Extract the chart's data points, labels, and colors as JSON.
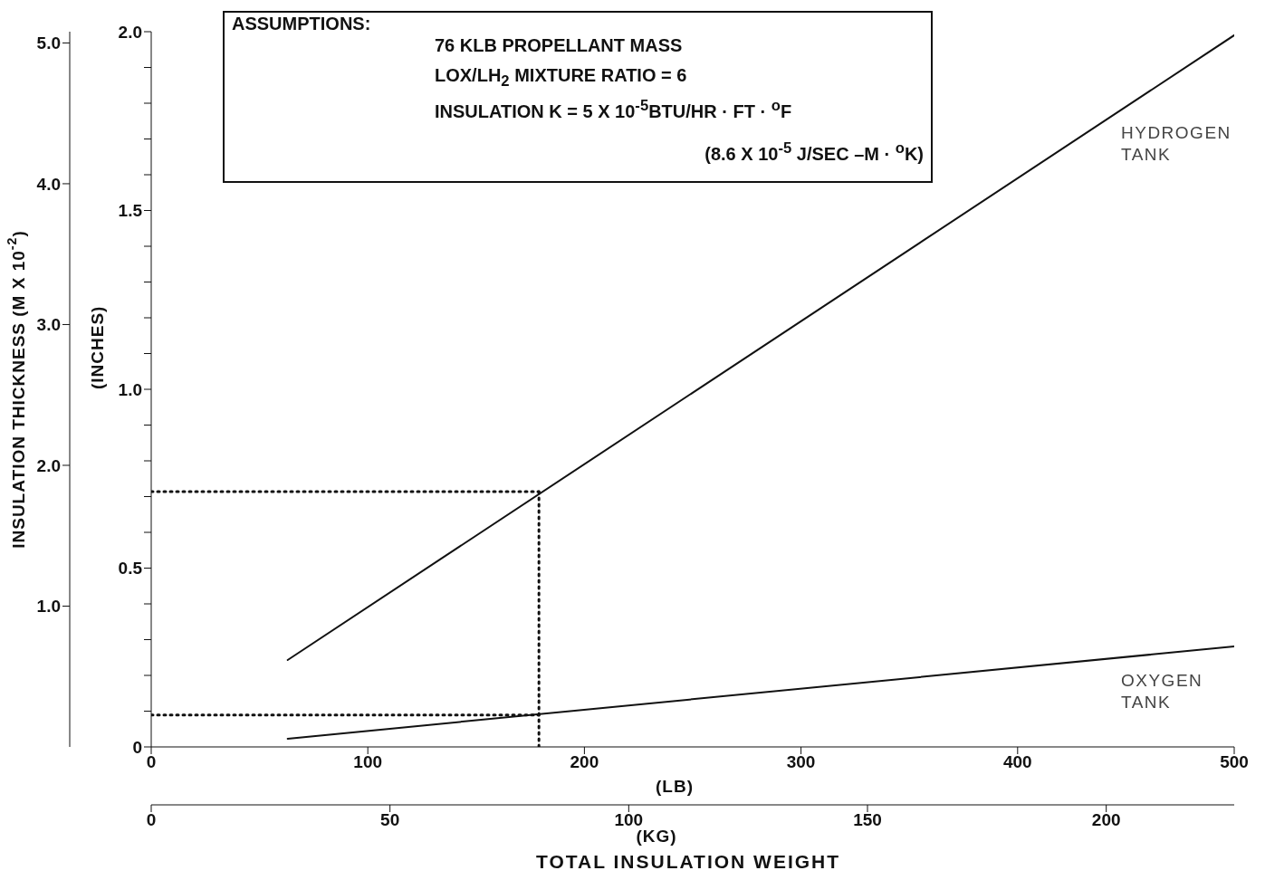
{
  "chart_data": {
    "type": "line",
    "xlabel": "(LB)",
    "x2label": "(KG)",
    "ylabel": "(INCHES)",
    "y2label": "INSULATION THICKNESS (M X 10$^{-2}$)",
    "annotations": [
      "ASSUMPTIONS:",
      "76 KLB PROPELLANT MASS",
      "LOX/LH$_{2}$ MIXTURE RATIO = 6",
      "INSULATION K = 5 X 10$^{-5}$BTU/HR · FT · $^{o}$F",
      "(8.6 X 10$^{-5}$ J/SEC –M · $^{o}$K)",
      "TOTAL INSULATION WEIGHT"
    ],
    "series": [
      {
        "name": "HYDROGEN TANK",
        "color": "#111111",
        "x": [
          63,
          500
        ],
        "values": [
          0.243,
          1.99
        ]
      },
      {
        "name": "OXYGEN TANK",
        "color": "#111111",
        "x": [
          63,
          500
        ],
        "values": [
          0.023,
          0.281
        ]
      },
      {
        "color": "#111111",
        "line_style": "dotted",
        "x": [
          0,
          179
        ],
        "values": [
          0.714,
          0.714
        ]
      },
      {
        "color": "#111111",
        "line_style": "dotted",
        "x": [
          0,
          179
        ],
        "values": [
          0.089,
          0.089
        ]
      },
      {
        "color": "#111111",
        "line_style": "dotted",
        "x": [
          179,
          179
        ],
        "values": [
          0,
          0.714
        ]
      }
    ],
    "xlim": [
      0,
      500
    ],
    "xticks": [
      0,
      100,
      200,
      300,
      400,
      500
    ],
    "x2lim": [
      0,
      226.8
    ],
    "x2ticks": [
      0,
      50,
      100,
      150,
      200
    ],
    "ylim": [
      0,
      2.0
    ],
    "yticks": [
      0,
      {
        "value": 0.1,
        "label": null
      },
      {
        "value": 0.2,
        "label": null
      },
      {
        "value": 0.3,
        "label": null
      },
      {
        "value": 0.4,
        "label": null
      },
      {
        "value": 0.5,
        "label": "0.5"
      },
      {
        "value": 0.6,
        "label": null
      },
      {
        "value": 0.7,
        "label": null
      },
      {
        "value": 0.8,
        "label": null
      },
      {
        "value": 0.9,
        "label": null
      },
      {
        "value": 1.0,
        "label": "1.0"
      },
      {
        "value": 1.1,
        "label": null
      },
      {
        "value": 1.2,
        "label": null
      },
      {
        "value": 1.3,
        "label": null
      },
      {
        "value": 1.4,
        "label": null
      },
      {
        "value": 1.5,
        "label": "1.5"
      },
      {
        "value": 1.6,
        "label": null
      },
      {
        "value": 1.7,
        "label": null
      },
      {
        "value": 1.8,
        "label": null
      },
      {
        "value": 1.9,
        "label": null
      },
      {
        "value": 2.0,
        "label": "2.0"
      }
    ],
    "y2lim": [
      0,
      5.08
    ],
    "y2ticks": [
      {
        "value": 1.0,
        "label": "1.0"
      },
      {
        "value": 2.0,
        "label": "2.0"
      },
      {
        "value": 3.0,
        "label": "3.0"
      },
      {
        "value": 4.0,
        "label": "4.0"
      },
      {
        "value": 5.0,
        "label": "5.0"
      }
    ],
    "grid": false,
    "legend": false,
    "marker": "none",
    "line_style": "solid"
  }
}
